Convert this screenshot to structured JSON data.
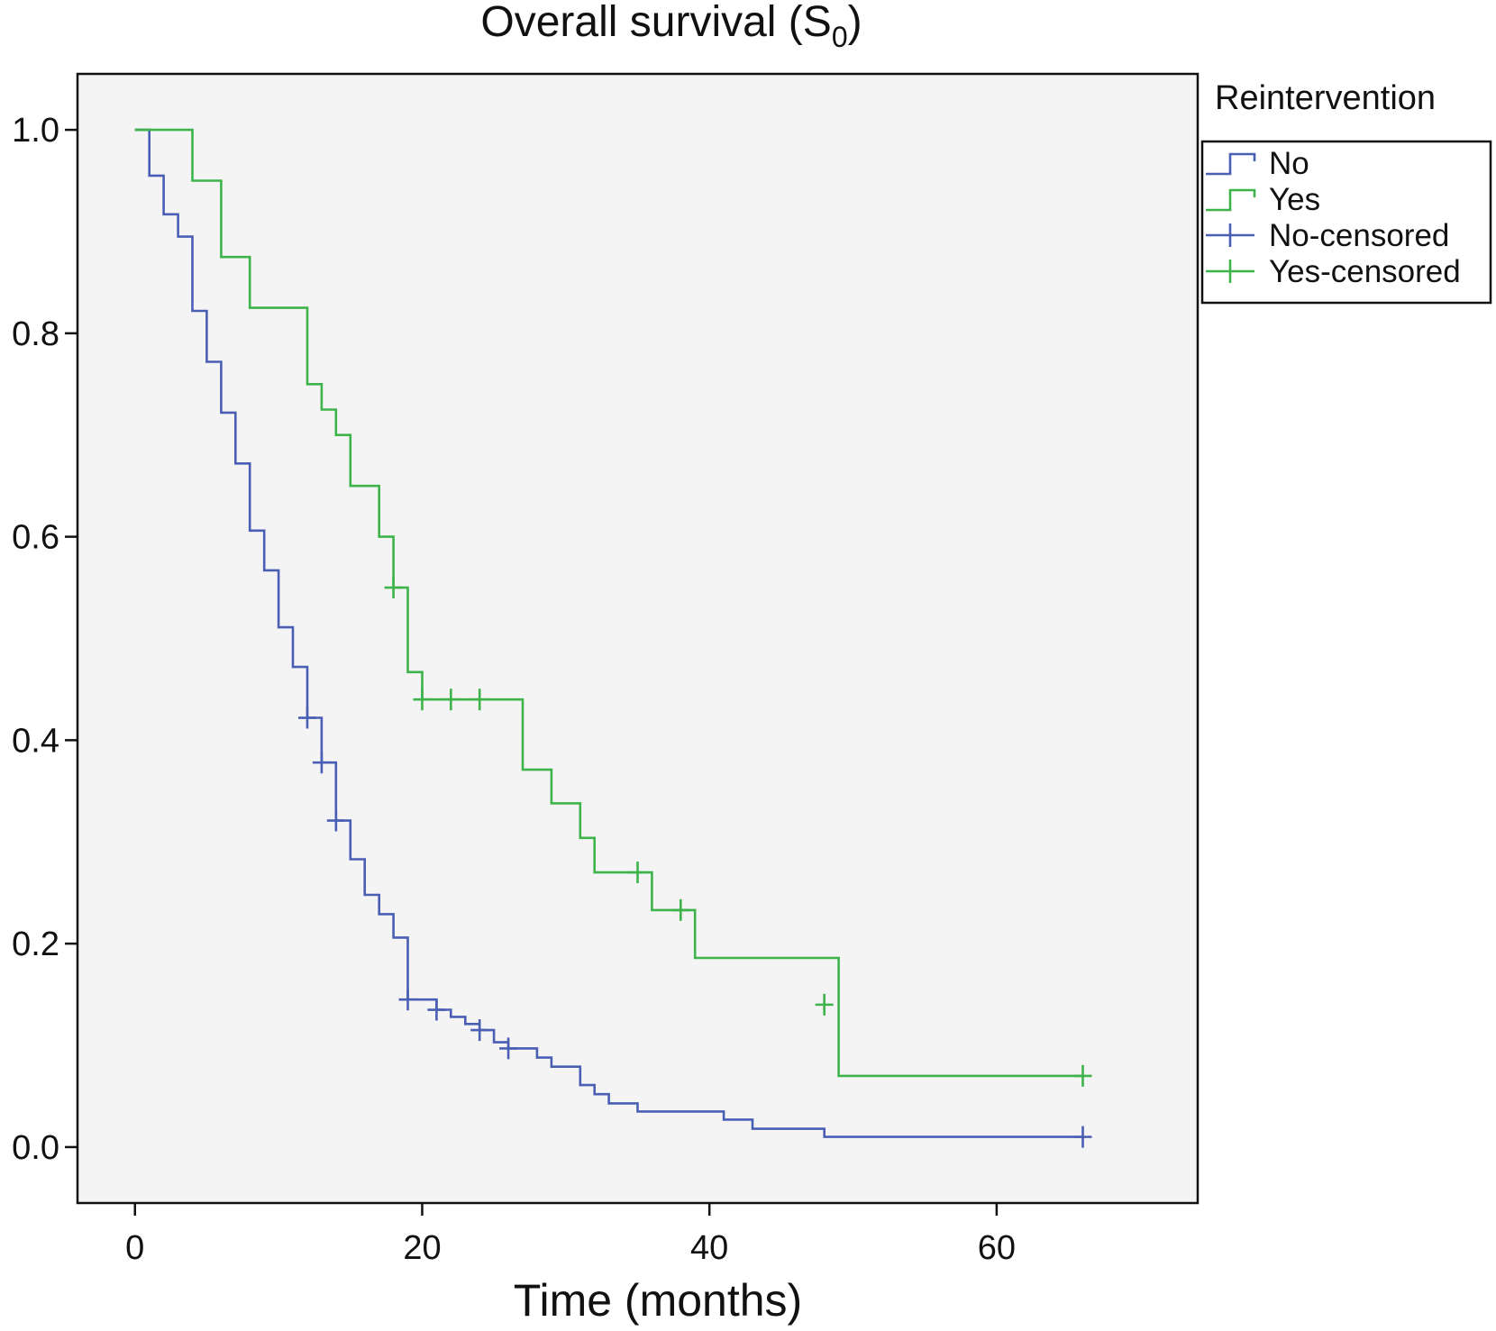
{
  "chart_data": {
    "type": "line",
    "title": "Overall survival (S",
    "title_subscript": "0",
    "title_close": ")",
    "xlabel": "Time (months)",
    "ylabel": "",
    "xlim": [
      -4,
      74
    ],
    "ylim": [
      -0.055,
      1.055
    ],
    "x_ticks": [
      0,
      20,
      40,
      60
    ],
    "x_tick_labels": [
      "0",
      "20",
      "40",
      "60"
    ],
    "y_ticks": [
      0.0,
      0.2,
      0.4,
      0.6,
      0.8,
      1.0
    ],
    "y_tick_labels": [
      "0.0",
      "0.2",
      "0.4",
      "0.6",
      "0.8",
      "1.0"
    ],
    "grid": false,
    "plot_background": "#f4f4f4",
    "legend": {
      "title": "Reintervention",
      "position": "outside-top-right",
      "entries": [
        "No",
        "Yes",
        "No-censored",
        "Yes-censored"
      ]
    },
    "colors": {
      "No": "#4a5fb4",
      "Yes": "#3db34a"
    },
    "series": [
      {
        "name": "No",
        "color": "#4a5fb4",
        "steps": [
          [
            0,
            1.0
          ],
          [
            1,
            0.955
          ],
          [
            2,
            0.917
          ],
          [
            3,
            0.895
          ],
          [
            4,
            0.822
          ],
          [
            5,
            0.772
          ],
          [
            6,
            0.722
          ],
          [
            7,
            0.672
          ],
          [
            8,
            0.606
          ],
          [
            9,
            0.567
          ],
          [
            10,
            0.511
          ],
          [
            11,
            0.472
          ],
          [
            12,
            0.422
          ],
          [
            13,
            0.378
          ],
          [
            14,
            0.321
          ],
          [
            15,
            0.283
          ],
          [
            16,
            0.248
          ],
          [
            17,
            0.229
          ],
          [
            18,
            0.206
          ],
          [
            19,
            0.145
          ],
          [
            21,
            0.135
          ],
          [
            22,
            0.128
          ],
          [
            23,
            0.121
          ],
          [
            24,
            0.115
          ],
          [
            25,
            0.103
          ],
          [
            26,
            0.097
          ],
          [
            28,
            0.088
          ],
          [
            29,
            0.079
          ],
          [
            31,
            0.061
          ],
          [
            32,
            0.052
          ],
          [
            33,
            0.043
          ],
          [
            35,
            0.035
          ],
          [
            41,
            0.027
          ],
          [
            43,
            0.018
          ],
          [
            48,
            0.01
          ],
          [
            66,
            0.01
          ]
        ],
        "censored": [
          [
            12,
            0.422
          ],
          [
            13,
            0.378
          ],
          [
            14,
            0.321
          ],
          [
            19,
            0.145
          ],
          [
            21,
            0.135
          ],
          [
            24,
            0.115
          ],
          [
            26,
            0.097
          ],
          [
            66,
            0.01
          ]
        ]
      },
      {
        "name": "Yes",
        "color": "#3db34a",
        "steps": [
          [
            0,
            1.0
          ],
          [
            4,
            0.95
          ],
          [
            6,
            0.875
          ],
          [
            8,
            0.825
          ],
          [
            12,
            0.75
          ],
          [
            13,
            0.725
          ],
          [
            14,
            0.7
          ],
          [
            15,
            0.65
          ],
          [
            17,
            0.6
          ],
          [
            18,
            0.55
          ],
          [
            19,
            0.467
          ],
          [
            20,
            0.44
          ],
          [
            27,
            0.371
          ],
          [
            29,
            0.338
          ],
          [
            31,
            0.304
          ],
          [
            32,
            0.27
          ],
          [
            36,
            0.233
          ],
          [
            39,
            0.186
          ],
          [
            49,
            0.07
          ],
          [
            66,
            0.07
          ]
        ],
        "censored": [
          [
            18,
            0.55
          ],
          [
            20,
            0.44
          ],
          [
            22,
            0.44
          ],
          [
            24,
            0.44
          ],
          [
            35,
            0.27
          ],
          [
            38,
            0.233
          ],
          [
            48,
            0.14
          ],
          [
            66,
            0.07
          ]
        ]
      }
    ]
  }
}
